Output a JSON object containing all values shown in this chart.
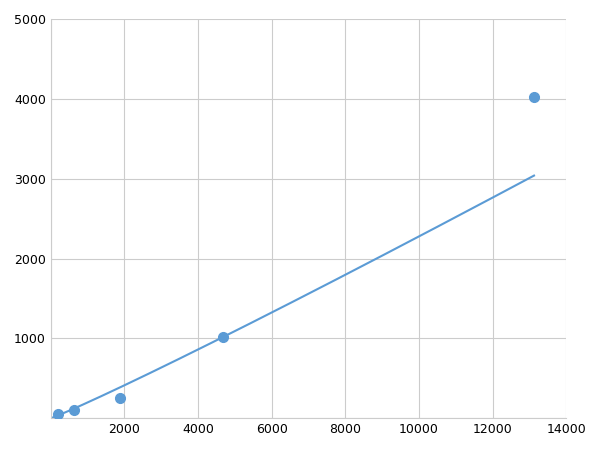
{
  "x": [
    200,
    625,
    1875,
    4688,
    13125
  ],
  "y": [
    50,
    100,
    250,
    1020,
    4020
  ],
  "line_color": "#5b9bd5",
  "marker_color": "#5b9bd5",
  "marker_size": 7,
  "linewidth": 1.5,
  "xlim": [
    0,
    14000
  ],
  "ylim": [
    0,
    5000
  ],
  "xticks": [
    0,
    2000,
    4000,
    6000,
    8000,
    10000,
    12000,
    14000
  ],
  "yticks": [
    0,
    1000,
    2000,
    3000,
    4000,
    5000
  ],
  "grid_color": "#cccccc",
  "background_color": "#ffffff",
  "figwidth": 6.0,
  "figheight": 4.5,
  "dpi": 100
}
